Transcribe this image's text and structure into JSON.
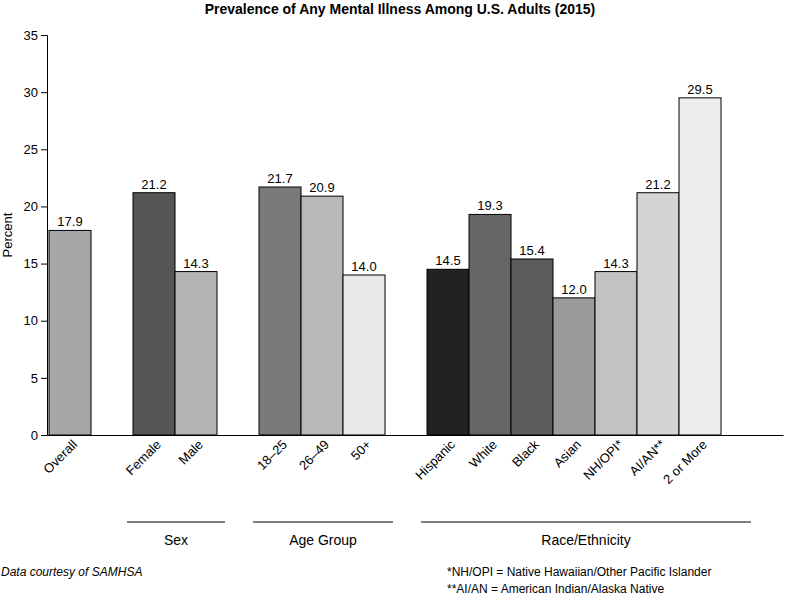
{
  "chart_data": {
    "type": "bar",
    "title": "Prevalence of Any Mental Illness Among U.S. Adults (2015)",
    "y_label": "Percent",
    "categories": [
      "Overall",
      "Female",
      "Male",
      "18–25",
      "26–49",
      "50+",
      "Hispanic",
      "White",
      "Black",
      "Asian",
      "NH/OPI*",
      "AI/AN**",
      "2 or More"
    ],
    "values": [
      17.9,
      21.2,
      14.3,
      21.7,
      20.9,
      14.0,
      14.5,
      19.3,
      15.4,
      12.0,
      14.3,
      21.2,
      29.5
    ],
    "value_labels": [
      "17.9",
      "21.2",
      "14.3",
      "21.7",
      "20.9",
      "14.0",
      "14.5",
      "19.3",
      "15.4",
      "12.0",
      "14.3",
      "21.2",
      "29.5"
    ],
    "colors": [
      "#a6a6a6",
      "#555555",
      "#b3b3b3",
      "#7a7a7a",
      "#b8b8b8",
      "#e8e8e8",
      "#222222",
      "#666666",
      "#5c5c5c",
      "#9a9a9a",
      "#c2c2c2",
      "#d4d4d4",
      "#ededed"
    ],
    "ylim": [
      0,
      35
    ],
    "yticks": [
      0,
      5,
      10,
      15,
      20,
      25,
      30,
      35
    ],
    "data_labels": true,
    "groups": [
      {
        "label": "Sex",
        "members": [
          "Female",
          "Male"
        ]
      },
      {
        "label": "Age Group",
        "members": [
          "18–25",
          "26–49",
          "50+"
        ]
      },
      {
        "label": "Race/Ethnicity",
        "members": [
          "Hispanic",
          "White",
          "Black",
          "Asian",
          "NH/OPI*",
          "AI/AN**",
          "2 or More"
        ]
      }
    ],
    "source": "Data courtesy of SAMHSA",
    "notes": [
      "*NH/OPI = Native Hawaiian/Other Pacific Islander",
      "**AI/AN = American Indian/Alaska Native"
    ]
  }
}
